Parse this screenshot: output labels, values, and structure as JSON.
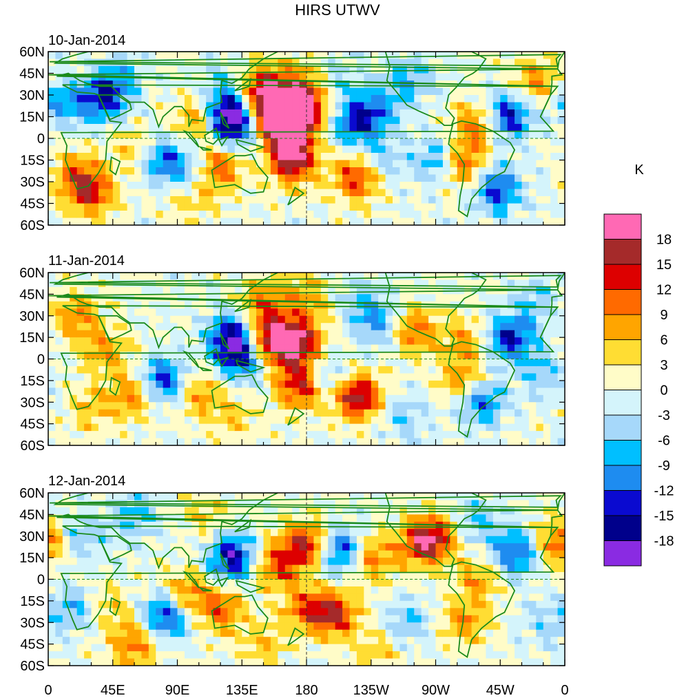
{
  "chart_data": {
    "type": "heatmap",
    "title": "HIRS UTWV",
    "units": "K",
    "colorbar": {
      "levels": [
        "-18",
        "-15",
        "-12",
        "-9",
        "-6",
        "-3",
        "0",
        "3",
        "6",
        "9",
        "12",
        "15",
        "18"
      ],
      "colors": [
        "#8a2be2",
        "#00008b",
        "#0a0ad0",
        "#1e8cf0",
        "#00bfff",
        "#a6d8fa",
        "#d4f4fb",
        "#fffcc8",
        "#ffdd33",
        "#ffa500",
        "#ff6a00",
        "#dd0000",
        "#a52a2a",
        "#ff69b4"
      ]
    },
    "x_ticks": [
      "0",
      "45E",
      "90E",
      "135E",
      "180",
      "135W",
      "90W",
      "45W",
      "0"
    ],
    "x_tick_values": [
      0,
      45,
      90,
      135,
      180,
      225,
      270,
      315,
      360
    ],
    "y_ticks": [
      "60N",
      "45N",
      "30N",
      "15N",
      "0",
      "15S",
      "30S",
      "45S",
      "60S"
    ],
    "y_tick_values": [
      60,
      45,
      30,
      15,
      0,
      -15,
      -30,
      -45,
      -60
    ],
    "xlim": [
      0,
      360
    ],
    "ylim": [
      -60,
      60
    ],
    "panels": [
      {
        "label": "10-Jan-2014",
        "features": [
          {
            "lon": 162,
            "lat": 13,
            "v": 19
          },
          {
            "lon": 168,
            "lat": 17,
            "v": 14
          },
          {
            "lon": 180,
            "lat": 20,
            "v": 11
          },
          {
            "lon": 145,
            "lat": 28,
            "v": 12
          },
          {
            "lon": 155,
            "lat": 38,
            "v": 9
          },
          {
            "lon": 180,
            "lat": 38,
            "v": 8
          },
          {
            "lon": 128,
            "lat": 18,
            "v": -18
          },
          {
            "lon": 128,
            "lat": 6,
            "v": -10
          },
          {
            "lon": 105,
            "lat": 12,
            "v": 8
          },
          {
            "lon": 170,
            "lat": -8,
            "v": 13
          },
          {
            "lon": 170,
            "lat": -20,
            "v": 9
          },
          {
            "lon": 215,
            "lat": -27,
            "v": 14
          },
          {
            "lon": 230,
            "lat": -15,
            "v": -6
          },
          {
            "lon": 225,
            "lat": 18,
            "v": -12
          },
          {
            "lon": 210,
            "lat": 8,
            "v": -8
          },
          {
            "lon": 300,
            "lat": 10,
            "v": 11
          },
          {
            "lon": 320,
            "lat": 15,
            "v": -16
          },
          {
            "lon": 313,
            "lat": -35,
            "v": -14
          },
          {
            "lon": 290,
            "lat": -18,
            "v": 11
          },
          {
            "lon": 270,
            "lat": -15,
            "v": -8
          },
          {
            "lon": 38,
            "lat": 28,
            "v": -14
          },
          {
            "lon": 30,
            "lat": -38,
            "v": 12
          },
          {
            "lon": 20,
            "lat": -25,
            "v": 9
          },
          {
            "lon": 80,
            "lat": -15,
            "v": -12
          },
          {
            "lon": 120,
            "lat": -20,
            "v": 12
          },
          {
            "lon": 100,
            "lat": -40,
            "v": 6
          },
          {
            "lon": 60,
            "lat": -8,
            "v": 6
          },
          {
            "lon": 50,
            "lat": 42,
            "v": -6
          },
          {
            "lon": 10,
            "lat": 25,
            "v": -9
          },
          {
            "lon": 200,
            "lat": 40,
            "v": -5
          },
          {
            "lon": 250,
            "lat": 40,
            "v": -8
          },
          {
            "lon": 340,
            "lat": 40,
            "v": 9
          },
          {
            "lon": 120,
            "lat": 35,
            "v": -4
          },
          {
            "lon": 100,
            "lat": -25,
            "v": -6
          }
        ]
      },
      {
        "label": "11-Jan-2014",
        "features": [
          {
            "lon": 165,
            "lat": 12,
            "v": 17
          },
          {
            "lon": 180,
            "lat": 10,
            "v": 9
          },
          {
            "lon": 150,
            "lat": 15,
            "v": 11
          },
          {
            "lon": 128,
            "lat": 15,
            "v": -17
          },
          {
            "lon": 135,
            "lat": 0,
            "v": -12
          },
          {
            "lon": 176,
            "lat": -18,
            "v": 15
          },
          {
            "lon": 215,
            "lat": -26,
            "v": 18
          },
          {
            "lon": 195,
            "lat": -12,
            "v": -8
          },
          {
            "lon": 230,
            "lat": 24,
            "v": -8
          },
          {
            "lon": 255,
            "lat": 20,
            "v": 11
          },
          {
            "lon": 290,
            "lat": 12,
            "v": 8
          },
          {
            "lon": 322,
            "lat": 14,
            "v": -15
          },
          {
            "lon": 300,
            "lat": -28,
            "v": -14
          },
          {
            "lon": 290,
            "lat": -18,
            "v": 11
          },
          {
            "lon": 80,
            "lat": -15,
            "v": -14
          },
          {
            "lon": 60,
            "lat": -25,
            "v": 9
          },
          {
            "lon": 30,
            "lat": -35,
            "v": 6
          },
          {
            "lon": 40,
            "lat": 5,
            "v": 8
          },
          {
            "lon": 150,
            "lat": 40,
            "v": 9
          },
          {
            "lon": 180,
            "lat": 42,
            "v": 8
          },
          {
            "lon": 220,
            "lat": 40,
            "v": -5
          },
          {
            "lon": 340,
            "lat": 40,
            "v": -6
          },
          {
            "lon": 20,
            "lat": 30,
            "v": 9
          },
          {
            "lon": 105,
            "lat": -25,
            "v": 8
          },
          {
            "lon": 130,
            "lat": -40,
            "v": 5
          },
          {
            "lon": 250,
            "lat": -40,
            "v": -5
          },
          {
            "lon": 345,
            "lat": -10,
            "v": -6
          }
        ]
      },
      {
        "label": "12-Jan-2014",
        "features": [
          {
            "lon": 128,
            "lat": 15,
            "v": -17
          },
          {
            "lon": 180,
            "lat": 25,
            "v": 14
          },
          {
            "lon": 160,
            "lat": 10,
            "v": 12
          },
          {
            "lon": 205,
            "lat": 20,
            "v": -14
          },
          {
            "lon": 225,
            "lat": 15,
            "v": 11
          },
          {
            "lon": 260,
            "lat": 25,
            "v": 13
          },
          {
            "lon": 270,
            "lat": 30,
            "v": 9
          },
          {
            "lon": 325,
            "lat": 18,
            "v": -13
          },
          {
            "lon": 300,
            "lat": 0,
            "v": 8
          },
          {
            "lon": 83,
            "lat": -25,
            "v": -15
          },
          {
            "lon": 95,
            "lat": -10,
            "v": 10
          },
          {
            "lon": 120,
            "lat": -20,
            "v": 11
          },
          {
            "lon": 200,
            "lat": -25,
            "v": 14
          },
          {
            "lon": 180,
            "lat": -20,
            "v": 10
          },
          {
            "lon": 60,
            "lat": -45,
            "v": 10
          },
          {
            "lon": 40,
            "lat": -20,
            "v": 6
          },
          {
            "lon": 20,
            "lat": -20,
            "v": -8
          },
          {
            "lon": 25,
            "lat": 30,
            "v": -6
          },
          {
            "lon": 60,
            "lat": 45,
            "v": -7
          },
          {
            "lon": 110,
            "lat": 45,
            "v": 5
          },
          {
            "lon": 150,
            "lat": -45,
            "v": 6
          },
          {
            "lon": 250,
            "lat": -30,
            "v": -6
          },
          {
            "lon": 290,
            "lat": -30,
            "v": 8
          },
          {
            "lon": 350,
            "lat": -30,
            "v": -5
          },
          {
            "lon": 355,
            "lat": 25,
            "v": 11
          },
          {
            "lon": 300,
            "lat": 40,
            "v": -6
          },
          {
            "lon": 230,
            "lat": -50,
            "v": 5
          }
        ]
      }
    ]
  }
}
